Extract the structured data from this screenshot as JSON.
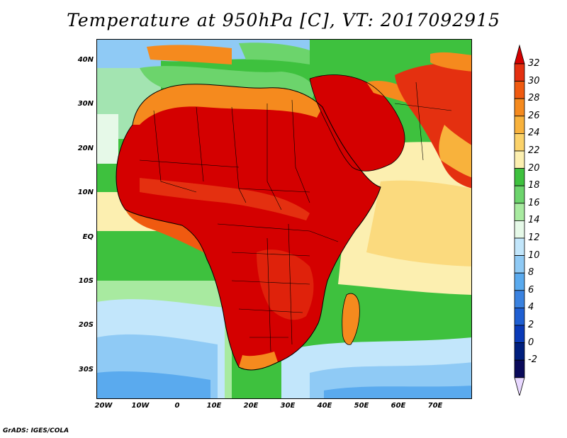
{
  "title": "Temperature at 950hPa [C], VT: 2017092915",
  "credit": "GrADS: IGES/COLA",
  "map": {
    "lon_range": [
      -22,
      80
    ],
    "lat_range": [
      -36,
      45
    ],
    "y_ticks": [
      "40N",
      "30N",
      "20N",
      "10N",
      "EQ",
      "10S",
      "20S",
      "30S"
    ],
    "x_ticks": [
      "20W",
      "10W",
      "0",
      "10E",
      "20E",
      "30E",
      "40E",
      "50E",
      "60E",
      "70E"
    ]
  },
  "colorbar": {
    "labels": [
      "32",
      "30",
      "28",
      "26",
      "24",
      "22",
      "20",
      "18",
      "16",
      "14",
      "12",
      "10",
      "8",
      "6",
      "4",
      "2",
      "0",
      "-2"
    ],
    "colors": [
      "#d40000",
      "#e43010",
      "#f05a10",
      "#f58a1e",
      "#f8b23c",
      "#fbd26a",
      "#fcefb0",
      "#3ec13e",
      "#6cd46c",
      "#a8eaa0",
      "#e6f9e8",
      "#c2e6fb",
      "#8fcaf5",
      "#5aaaee",
      "#3a82e0",
      "#1f5fd2",
      "#0a3ab8",
      "#001f7e",
      "#0a0a5a",
      "#e8d8ff"
    ]
  }
}
